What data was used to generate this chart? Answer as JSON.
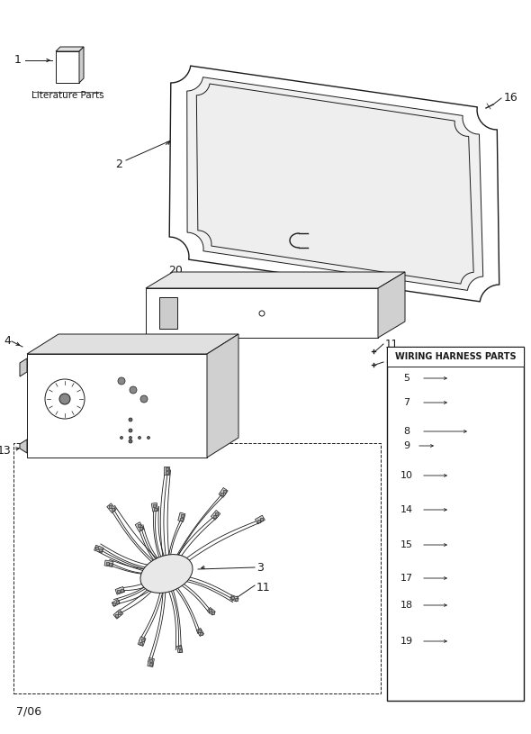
{
  "bg_color": "#ffffff",
  "fig_width": 5.9,
  "fig_height": 8.15,
  "dpi": 100,
  "date_label": "7/06",
  "wiring_box_title": "WIRING HARNESS PARTS",
  "line_color": "#1a1a1a",
  "line_color_light": "#555555"
}
